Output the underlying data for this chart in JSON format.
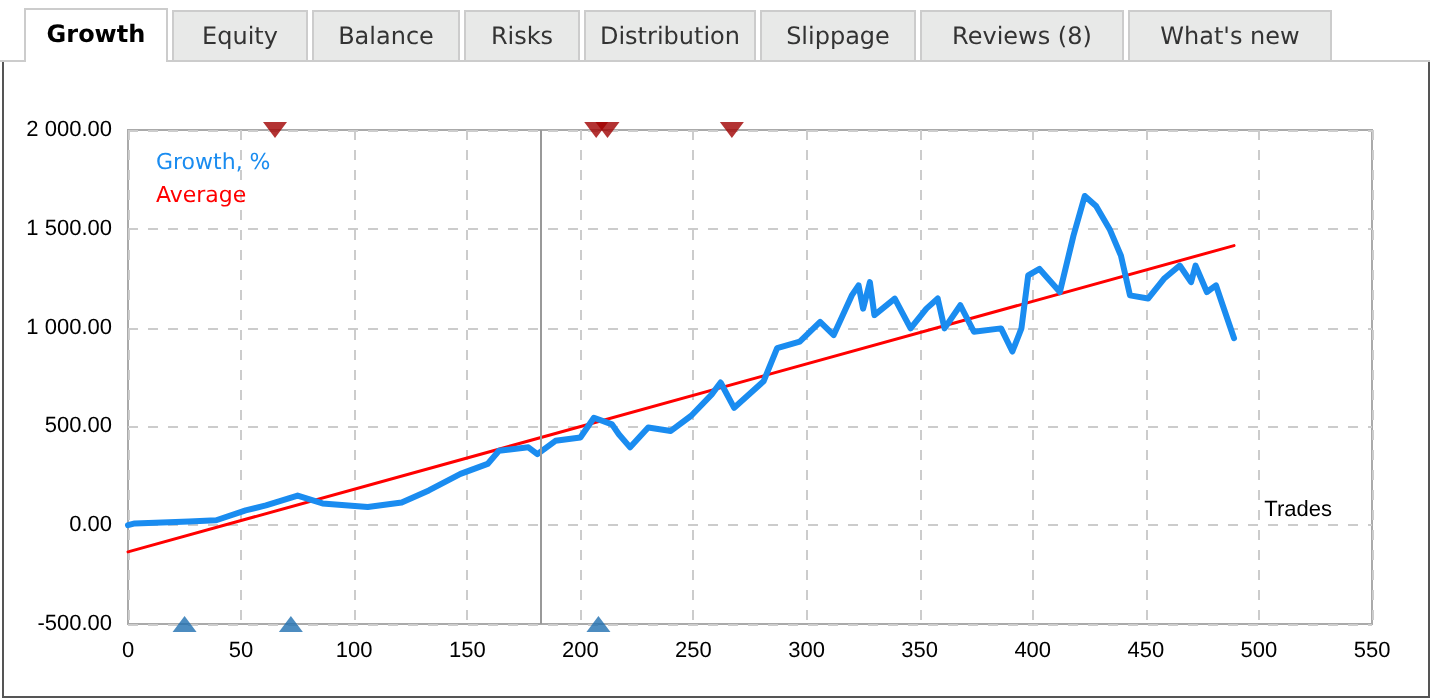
{
  "chart_data": {
    "type": "line",
    "annotations": [
      "Growth",
      "Equity",
      "Balance",
      "Risks",
      "Distribution",
      "Slippage",
      "Reviews (8)",
      "What's new"
    ],
    "xlabel": "Trades",
    "xlim": [
      0,
      550
    ],
    "xticks": [
      0,
      50,
      100,
      150,
      200,
      250,
      300,
      350,
      400,
      450,
      500,
      550
    ],
    "ylim": [
      -500,
      2000
    ],
    "yticks": [
      {
        "value": -500,
        "label": "-500.00"
      },
      {
        "value": 0,
        "label": "0.00"
      },
      {
        "value": 500,
        "label": "500.00"
      },
      {
        "value": 1000,
        "label": "1 000.00"
      },
      {
        "value": 1500,
        "label": "1 500.00"
      },
      {
        "value": 2000,
        "label": "2 000.00"
      }
    ],
    "grid": true,
    "legend": "top left",
    "marker": "none",
    "line_style": "solid",
    "ref_lines": [
      {
        "axis": "x",
        "value": 182,
        "color": "#999999"
      }
    ],
    "series": [
      {
        "name": "Growth, %",
        "color": "#1a8cf0",
        "x": [
          0,
          3,
          27,
          39,
          52,
          61,
          75,
          86,
          106,
          121,
          133,
          147,
          159,
          164,
          177,
          181,
          189,
          200,
          206,
          214,
          217,
          222,
          230,
          240,
          249,
          258,
          262,
          268,
          281,
          287,
          297,
          306,
          312,
          320,
          323,
          325,
          328,
          330,
          339,
          346,
          353,
          358,
          361,
          368,
          374,
          386,
          391,
          395,
          398,
          403,
          412,
          418,
          423,
          428,
          434,
          439,
          443,
          451,
          458,
          465,
          470,
          472,
          477,
          481,
          484,
          489
        ],
        "values": [
          0,
          9,
          19,
          25,
          75,
          100,
          150,
          110,
          92,
          115,
          176,
          260,
          310,
          377,
          394,
          360,
          427,
          444,
          544,
          510,
          460,
          394,
          494,
          477,
          554,
          661,
          722,
          594,
          728,
          896,
          929,
          1029,
          962,
          1163,
          1214,
          1096,
          1230,
          1063,
          1147,
          996,
          1096,
          1147,
          996,
          1113,
          979,
          996,
          879,
          996,
          1264,
          1297,
          1180,
          1465,
          1666,
          1615,
          1498,
          1364,
          1163,
          1147,
          1247,
          1314,
          1230,
          1314,
          1180,
          1214,
          1113,
          946
        ]
      },
      {
        "name": "Average",
        "color": "#ff0000",
        "x": [
          0,
          489
        ],
        "values": [
          -135,
          1415
        ]
      },
      {
        "type": "scatter",
        "marker": "triangle",
        "color": "#a00000",
        "x": [
          65,
          207,
          212,
          267
        ],
        "values": [
          2000,
          2000,
          2000,
          2000
        ]
      },
      {
        "type": "scatter",
        "marker": "triangle",
        "color": "#1f6fb0",
        "x": [
          25,
          72,
          208
        ],
        "values": [
          -500,
          -500,
          -500
        ]
      }
    ]
  }
}
